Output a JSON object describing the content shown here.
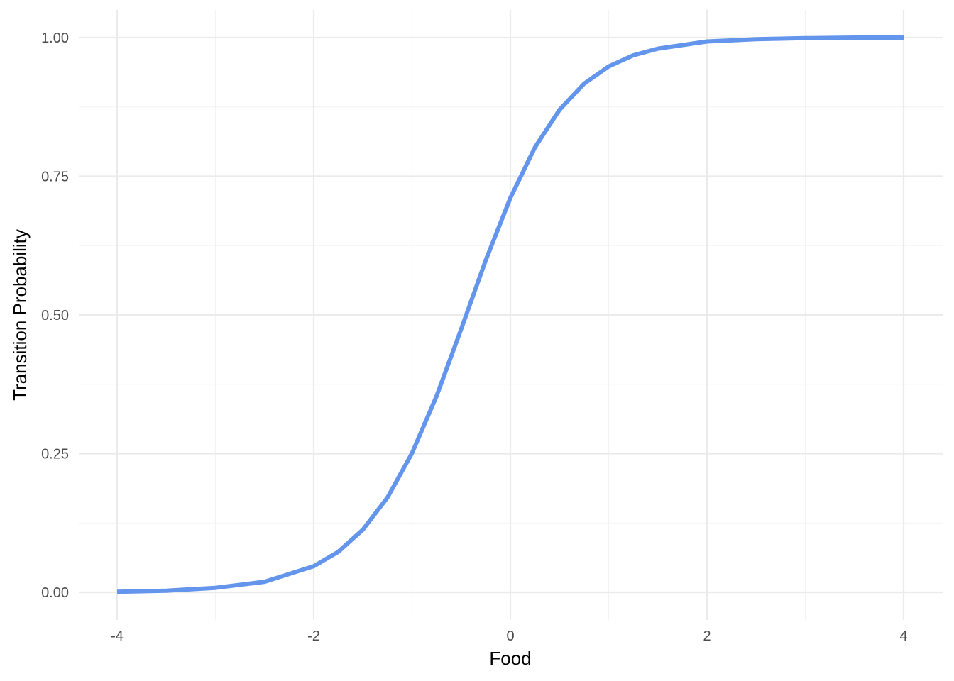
{
  "chart_data": {
    "type": "line",
    "xlabel": "Food",
    "ylabel": "Transition Probability",
    "xlim": [
      -4,
      4
    ],
    "ylim": [
      0,
      1
    ],
    "x_ticks": [
      -4,
      -2,
      0,
      2,
      4
    ],
    "x_tick_labels": [
      "-4",
      "-2",
      "0",
      "2",
      "4"
    ],
    "y_ticks": [
      0,
      0.25,
      0.5,
      0.75,
      1.0
    ],
    "y_tick_labels": [
      "0.00",
      "0.25",
      "0.50",
      "0.75",
      "1.00"
    ],
    "grid": true,
    "series": [
      {
        "color": "#6495ed",
        "x": [
          -4,
          -3.5,
          -3,
          -2.5,
          -2,
          -1.75,
          -1.5,
          -1.25,
          -1,
          -0.75,
          -0.5,
          -0.25,
          0,
          0.25,
          0.5,
          0.75,
          1,
          1.25,
          1.5,
          2,
          2.5,
          3,
          3.5,
          4
        ],
        "y": [
          0.001,
          0.003,
          0.008,
          0.019,
          0.047,
          0.073,
          0.113,
          0.171,
          0.251,
          0.354,
          0.475,
          0.599,
          0.711,
          0.802,
          0.87,
          0.917,
          0.948,
          0.968,
          0.98,
          0.993,
          0.997,
          0.999,
          1.0,
          1.0
        ]
      }
    ]
  }
}
